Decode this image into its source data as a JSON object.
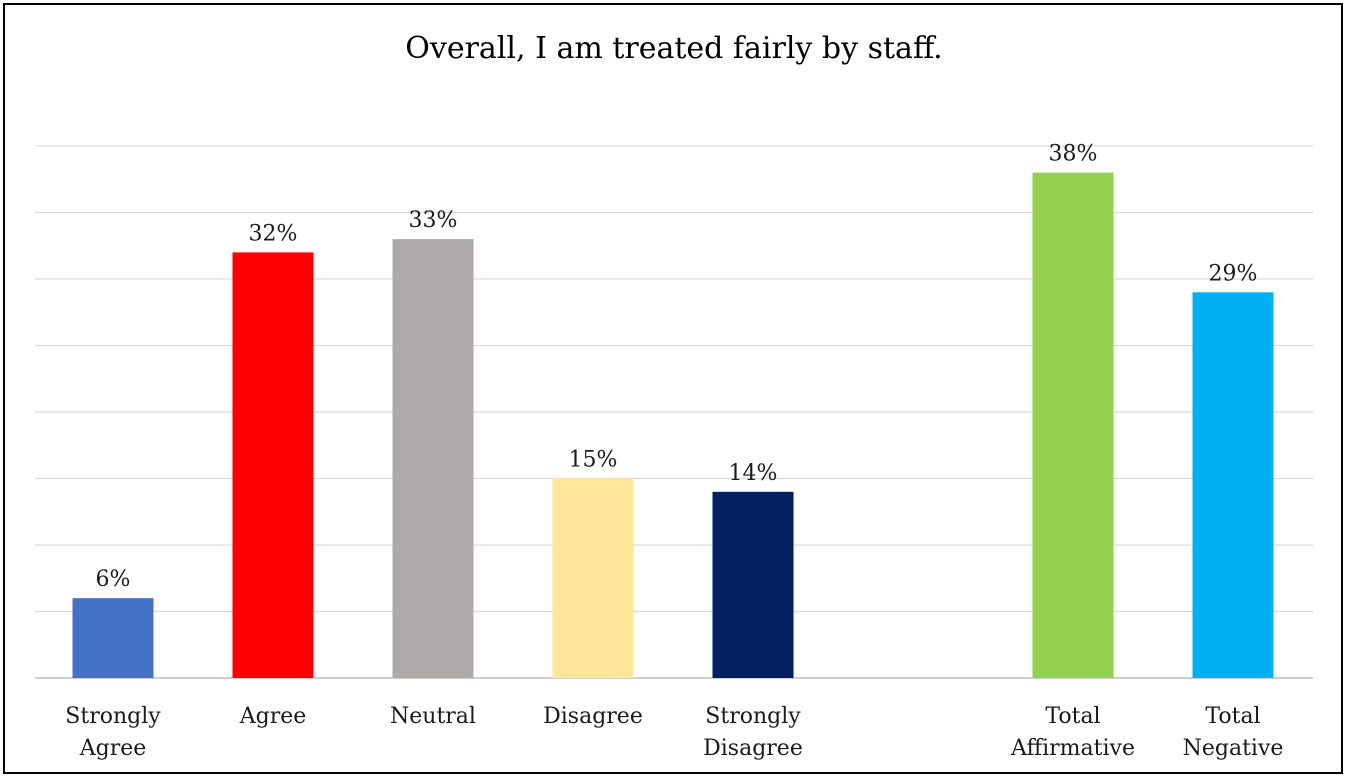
{
  "chart_data": {
    "type": "bar",
    "title": "Overall, I am treated fairly by staff.",
    "xlabel": "",
    "ylabel": "",
    "ylim": [
      0,
      40
    ],
    "grid": true,
    "legend": "none",
    "gap_after_index": 4,
    "categories": [
      [
        "Strongly",
        "Agree"
      ],
      [
        "Agree"
      ],
      [
        "Neutral"
      ],
      [
        "Disagree"
      ],
      [
        "Strongly",
        "Disagree"
      ],
      [
        "Total",
        "Affirmative"
      ],
      [
        "Total",
        "Negative"
      ]
    ],
    "values": [
      6,
      32,
      33,
      15,
      14,
      38,
      29
    ],
    "data_labels": [
      "6%",
      "32%",
      "33%",
      "15%",
      "14%",
      "38%",
      "29%"
    ],
    "colors": [
      "#4472C4",
      "#FF0000",
      "#AEAAAA",
      "#FFE699",
      "#002060",
      "#92D050",
      "#00B0F0"
    ]
  }
}
